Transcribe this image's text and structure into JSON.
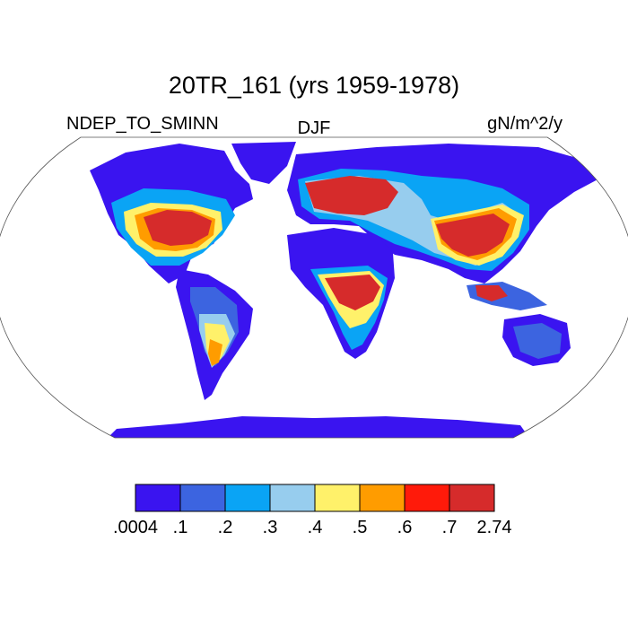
{
  "title": "20TR_161 (yrs 1959-1978)",
  "left_subtitle": "NDEP_TO_SMINN",
  "center_subtitle": "DJF",
  "right_subtitle": "gN/m^2/y",
  "colorbar": {
    "colors": [
      "#3a14f0",
      "#3c64e0",
      "#0aa4f5",
      "#97cdee",
      "#fff16a",
      "#ff9c00",
      "#ff1a0a",
      "#d62b2b"
    ],
    "labels": [
      ".0004",
      ".1",
      ".2",
      ".3",
      ".4",
      ".5",
      ".6",
      ".7",
      "2.74"
    ]
  }
}
